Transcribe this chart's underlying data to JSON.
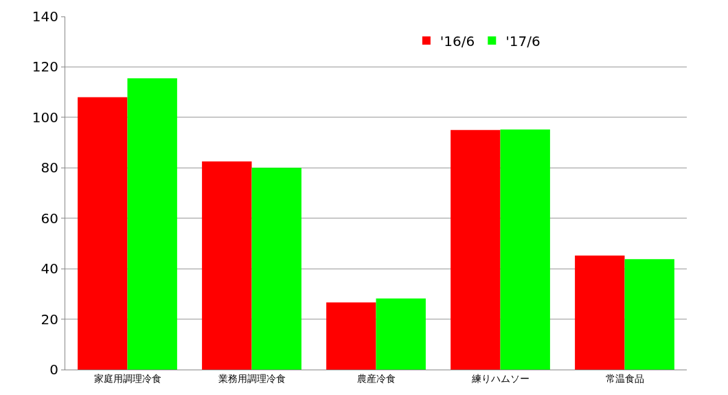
{
  "chart_data": {
    "type": "bar",
    "categories": [
      "家庭用調理冷食",
      "業務用調理冷食",
      "農産冷食",
      "練りハムソー",
      "常温食品"
    ],
    "series": [
      {
        "name": "'16/6",
        "color": "#ff0000",
        "values": [
          108,
          82.5,
          26.6,
          95,
          45.2
        ]
      },
      {
        "name": "'17/6",
        "color": "#00ff00",
        "values": [
          115.5,
          80,
          28.2,
          95.2,
          43.8
        ]
      }
    ],
    "ylim": [
      0,
      140
    ],
    "yticks": [
      0,
      20,
      40,
      60,
      80,
      100,
      120,
      140
    ],
    "grid": "y",
    "legend": "top right"
  }
}
